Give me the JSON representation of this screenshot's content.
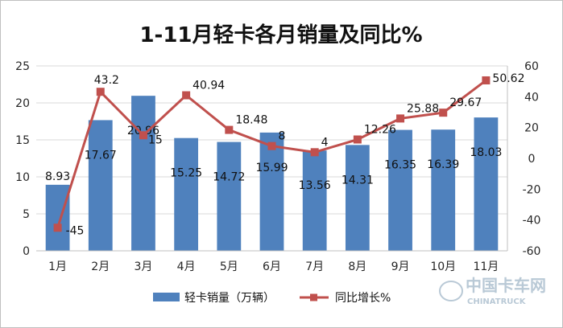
{
  "chart_data": {
    "type": "bar",
    "title": "1-11月轻卡各月销量及同比%",
    "categories": [
      "1月",
      "2月",
      "3月",
      "4月",
      "5月",
      "6月",
      "7月",
      "8月",
      "9月",
      "10月",
      "11月"
    ],
    "series": [
      {
        "name": "轻卡销量（万辆）",
        "type": "bar",
        "axis": "left",
        "color": "#4f81bd",
        "values": [
          8.93,
          17.67,
          20.96,
          15.25,
          14.72,
          15.99,
          13.56,
          14.31,
          16.35,
          16.39,
          18.03
        ],
        "labels": [
          "8.93",
          "17.67",
          "20.96",
          "15.25",
          "14.72",
          "15.99",
          "13.56",
          "14.31",
          "16.35",
          "16.39",
          "18.03"
        ]
      },
      {
        "name": "同比增长%",
        "type": "line",
        "axis": "right",
        "color": "#c0504d",
        "values": [
          -45,
          43.2,
          15,
          40.94,
          18.48,
          8,
          4,
          12.26,
          25.88,
          29.67,
          50.62
        ],
        "labels": [
          "-45",
          "43.2",
          "15",
          "40.94",
          "18.48",
          "8",
          "4",
          "12.26",
          "25.88",
          "29.67",
          "50.62"
        ]
      }
    ],
    "y_left": {
      "min": 0,
      "max": 25,
      "step": 5,
      "ticks": [
        "0",
        "5",
        "10",
        "15",
        "20",
        "25"
      ]
    },
    "y_right": {
      "min": -60,
      "max": 60,
      "step": 20,
      "ticks": [
        "-60",
        "-40",
        "-20",
        "0",
        "20",
        "40",
        "60"
      ]
    },
    "grid": true,
    "legend": "bottom"
  },
  "watermark": {
    "cn": "中国卡车网",
    "en": "CHINATRUCK"
  }
}
